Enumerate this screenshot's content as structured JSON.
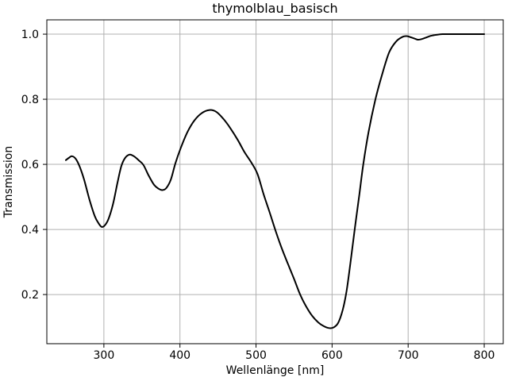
{
  "figure": {
    "background": "#ffffff",
    "grid_color": "#b0b0b0",
    "spine_color": "#000000",
    "tick_color": "#000000",
    "text_color": "#000000"
  },
  "chart_data": {
    "type": "line",
    "title": "thymolblau_basisch",
    "xlabel": "Wellenlänge [nm]",
    "ylabel": "Transmission",
    "xlim": [
      225,
      825
    ],
    "ylim": [
      0.049,
      1.044
    ],
    "xticks": [
      300,
      400,
      500,
      600,
      700,
      800
    ],
    "yticks": [
      0.2,
      0.4,
      0.6,
      0.8,
      1.0
    ],
    "ytick_decimals": 1,
    "grid": true,
    "legend_position": "none",
    "series": [
      {
        "name": "thymolblau_basisch",
        "color": "#000000",
        "line_width": 2,
        "points": [
          [
            250,
            0.613
          ],
          [
            254,
            0.62
          ],
          [
            258,
            0.625
          ],
          [
            263,
            0.617
          ],
          [
            268,
            0.594
          ],
          [
            274,
            0.553
          ],
          [
            281,
            0.492
          ],
          [
            288,
            0.441
          ],
          [
            293,
            0.419
          ],
          [
            297,
            0.408
          ],
          [
            301,
            0.412
          ],
          [
            306,
            0.432
          ],
          [
            312,
            0.478
          ],
          [
            318,
            0.545
          ],
          [
            323,
            0.595
          ],
          [
            328,
            0.62
          ],
          [
            334,
            0.63
          ],
          [
            340,
            0.624
          ],
          [
            346,
            0.612
          ],
          [
            352,
            0.598
          ],
          [
            359,
            0.565
          ],
          [
            366,
            0.537
          ],
          [
            372,
            0.525
          ],
          [
            377,
            0.521
          ],
          [
            382,
            0.527
          ],
          [
            388,
            0.553
          ],
          [
            394,
            0.603
          ],
          [
            401,
            0.65
          ],
          [
            410,
            0.7
          ],
          [
            419,
            0.735
          ],
          [
            429,
            0.758
          ],
          [
            439,
            0.767
          ],
          [
            448,
            0.761
          ],
          [
            457,
            0.74
          ],
          [
            466,
            0.712
          ],
          [
            476,
            0.675
          ],
          [
            485,
            0.637
          ],
          [
            494,
            0.605
          ],
          [
            502,
            0.57
          ],
          [
            510,
            0.508
          ],
          [
            518,
            0.452
          ],
          [
            526,
            0.394
          ],
          [
            534,
            0.341
          ],
          [
            542,
            0.294
          ],
          [
            550,
            0.248
          ],
          [
            558,
            0.2
          ],
          [
            566,
            0.163
          ],
          [
            574,
            0.134
          ],
          [
            582,
            0.114
          ],
          [
            589,
            0.103
          ],
          [
            596,
            0.097
          ],
          [
            602,
            0.099
          ],
          [
            608,
            0.113
          ],
          [
            614,
            0.153
          ],
          [
            619,
            0.21
          ],
          [
            624,
            0.295
          ],
          [
            630,
            0.405
          ],
          [
            636,
            0.51
          ],
          [
            641,
            0.6
          ],
          [
            648,
            0.7
          ],
          [
            657,
            0.8
          ],
          [
            666,
            0.878
          ],
          [
            675,
            0.944
          ],
          [
            684,
            0.977
          ],
          [
            692,
            0.991
          ],
          [
            698,
            0.994
          ],
          [
            704,
            0.99
          ],
          [
            709,
            0.986
          ],
          [
            713,
            0.983
          ],
          [
            718,
            0.985
          ],
          [
            724,
            0.99
          ],
          [
            730,
            0.995
          ],
          [
            737,
            0.998
          ],
          [
            745,
            1.0
          ],
          [
            758,
            1.0
          ],
          [
            772,
            1.0
          ],
          [
            786,
            1.0
          ],
          [
            800,
            1.0
          ]
        ]
      }
    ]
  }
}
